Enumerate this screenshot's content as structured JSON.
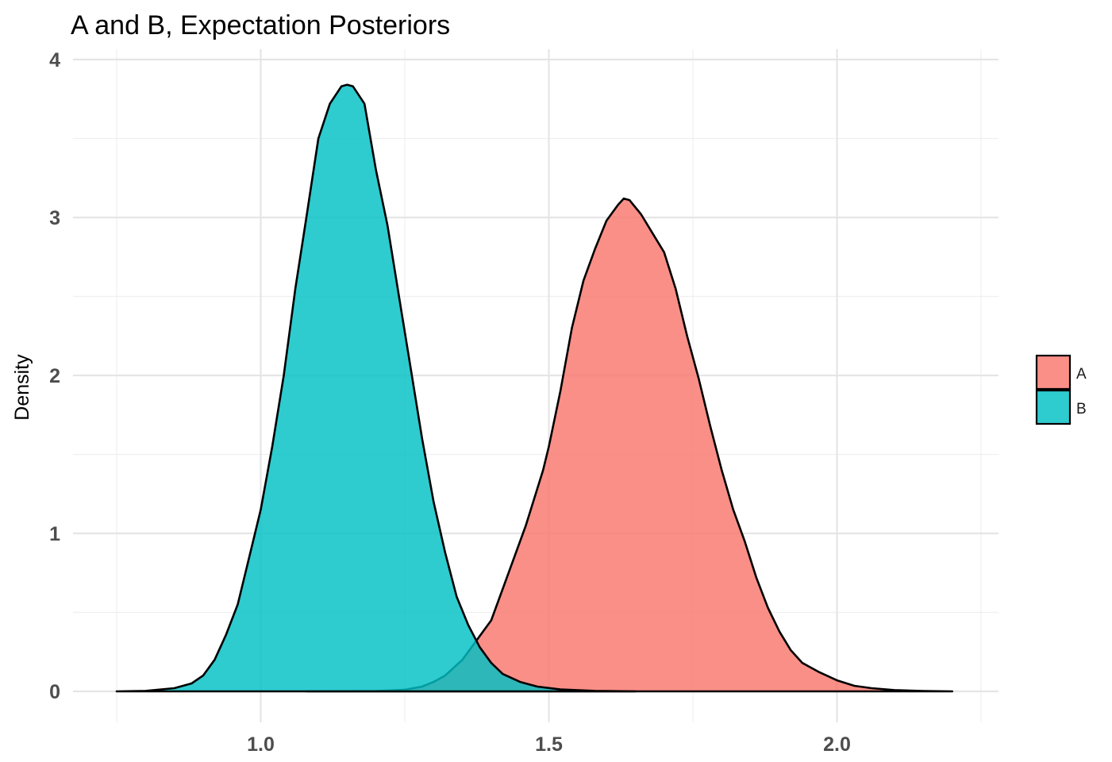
{
  "chart_data": {
    "type": "area",
    "title": "A and B, Expectation Posteriors",
    "xlabel": "",
    "ylabel": "Density",
    "xlim": [
      0.75,
      2.25
    ],
    "ylim": [
      0,
      4
    ],
    "x_ticks": [
      "1.0",
      "1.5",
      "2.0"
    ],
    "y_ticks": [
      "0",
      "1",
      "2",
      "3",
      "4"
    ],
    "grid": true,
    "legend_position": "right",
    "series": [
      {
        "name": "A",
        "color": "#F8766D",
        "points": [
          [
            1.08,
            0.0
          ],
          [
            1.2,
            0.002
          ],
          [
            1.25,
            0.01
          ],
          [
            1.28,
            0.03
          ],
          [
            1.3,
            0.06
          ],
          [
            1.32,
            0.1
          ],
          [
            1.35,
            0.2
          ],
          [
            1.37,
            0.3
          ],
          [
            1.4,
            0.45
          ],
          [
            1.43,
            0.75
          ],
          [
            1.46,
            1.05
          ],
          [
            1.49,
            1.4
          ],
          [
            1.5,
            1.55
          ],
          [
            1.52,
            1.9
          ],
          [
            1.54,
            2.3
          ],
          [
            1.56,
            2.6
          ],
          [
            1.58,
            2.8
          ],
          [
            1.6,
            2.98
          ],
          [
            1.62,
            3.08
          ],
          [
            1.63,
            3.12
          ],
          [
            1.64,
            3.11
          ],
          [
            1.66,
            3.02
          ],
          [
            1.68,
            2.9
          ],
          [
            1.7,
            2.78
          ],
          [
            1.72,
            2.55
          ],
          [
            1.74,
            2.25
          ],
          [
            1.76,
            1.98
          ],
          [
            1.78,
            1.68
          ],
          [
            1.8,
            1.4
          ],
          [
            1.82,
            1.15
          ],
          [
            1.84,
            0.95
          ],
          [
            1.86,
            0.72
          ],
          [
            1.88,
            0.53
          ],
          [
            1.9,
            0.38
          ],
          [
            1.92,
            0.26
          ],
          [
            1.94,
            0.18
          ],
          [
            1.97,
            0.12
          ],
          [
            2.0,
            0.07
          ],
          [
            2.03,
            0.035
          ],
          [
            2.06,
            0.02
          ],
          [
            2.1,
            0.008
          ],
          [
            2.15,
            0.002
          ],
          [
            2.2,
            0.0
          ]
        ]
      },
      {
        "name": "B",
        "color": "#00BFC4",
        "points": [
          [
            0.75,
            0.0
          ],
          [
            0.8,
            0.003
          ],
          [
            0.85,
            0.02
          ],
          [
            0.88,
            0.05
          ],
          [
            0.9,
            0.1
          ],
          [
            0.92,
            0.2
          ],
          [
            0.94,
            0.36
          ],
          [
            0.96,
            0.55
          ],
          [
            0.98,
            0.85
          ],
          [
            1.0,
            1.15
          ],
          [
            1.02,
            1.55
          ],
          [
            1.04,
            2.0
          ],
          [
            1.06,
            2.55
          ],
          [
            1.08,
            3.02
          ],
          [
            1.1,
            3.5
          ],
          [
            1.12,
            3.72
          ],
          [
            1.14,
            3.83
          ],
          [
            1.15,
            3.84
          ],
          [
            1.16,
            3.83
          ],
          [
            1.18,
            3.72
          ],
          [
            1.2,
            3.3
          ],
          [
            1.22,
            2.95
          ],
          [
            1.24,
            2.5
          ],
          [
            1.26,
            2.05
          ],
          [
            1.28,
            1.6
          ],
          [
            1.3,
            1.2
          ],
          [
            1.32,
            0.88
          ],
          [
            1.34,
            0.6
          ],
          [
            1.36,
            0.42
          ],
          [
            1.38,
            0.28
          ],
          [
            1.4,
            0.18
          ],
          [
            1.42,
            0.11
          ],
          [
            1.45,
            0.06
          ],
          [
            1.48,
            0.03
          ],
          [
            1.52,
            0.012
          ],
          [
            1.58,
            0.003
          ],
          [
            1.65,
            0.0
          ]
        ]
      }
    ]
  }
}
